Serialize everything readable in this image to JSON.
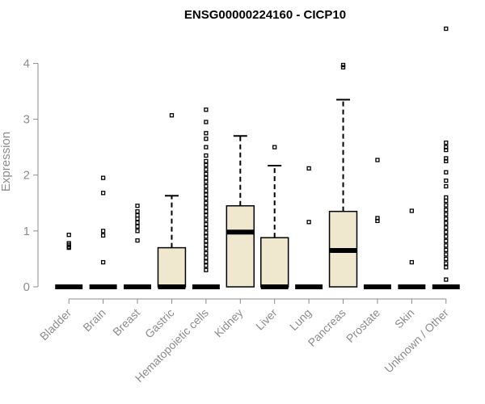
{
  "chart_data": {
    "type": "box",
    "title": "ENSG00000224160 - CICP10",
    "xlabel": "",
    "ylabel": "Expression",
    "ylim": [
      0,
      4.7
    ],
    "yticks": [
      0,
      1,
      2,
      3,
      4
    ],
    "grid": false,
    "box_color": "#efe8cf",
    "categories": [
      "Bladder",
      "Brain",
      "Breast",
      "Gastric",
      "Hematopoietic cells",
      "Kidney",
      "Liver",
      "Lung",
      "Pancreas",
      "Prostate",
      "Skin",
      "Unknown / Other"
    ],
    "boxes": [
      {
        "q1": 0,
        "median": 0,
        "q3": 0,
        "whisker_low": 0,
        "whisker_high": 0,
        "outliers": [
          0.7,
          0.72,
          0.75,
          0.78,
          0.93
        ]
      },
      {
        "q1": 0,
        "median": 0,
        "q3": 0,
        "whisker_low": 0,
        "whisker_high": 0,
        "outliers": [
          0.44,
          0.92,
          1.0,
          1.68,
          1.95
        ]
      },
      {
        "q1": 0,
        "median": 0,
        "q3": 0,
        "whisker_low": 0,
        "whisker_high": 0,
        "outliers": [
          0.83,
          1.0,
          1.08,
          1.15,
          1.22,
          1.28,
          1.35,
          1.45
        ]
      },
      {
        "q1": 0,
        "median": 0,
        "q3": 0.7,
        "whisker_low": 0,
        "whisker_high": 1.63,
        "outliers": [
          3.07
        ]
      },
      {
        "q1": 0,
        "median": 0,
        "q3": 0,
        "whisker_low": 0,
        "whisker_high": 0,
        "outliers": [
          0.3,
          0.38,
          0.45,
          0.52,
          0.6,
          0.68,
          0.75,
          0.82,
          0.9,
          0.97,
          1.05,
          1.12,
          1.2,
          1.28,
          1.35,
          1.42,
          1.5,
          1.58,
          1.65,
          1.72,
          1.8,
          1.88,
          1.95,
          2.02,
          2.1,
          2.18,
          2.25,
          2.35,
          2.5,
          2.65,
          2.75,
          2.95,
          3.17
        ]
      },
      {
        "q1": 0,
        "median": 0.98,
        "q3": 1.45,
        "whisker_low": 0,
        "whisker_high": 2.7,
        "outliers": []
      },
      {
        "q1": 0,
        "median": 0,
        "q3": 0.88,
        "whisker_low": 0,
        "whisker_high": 2.17,
        "outliers": [
          2.5
        ]
      },
      {
        "q1": 0,
        "median": 0,
        "q3": 0,
        "whisker_low": 0,
        "whisker_high": 0,
        "outliers": [
          1.16,
          2.12
        ]
      },
      {
        "q1": 0,
        "median": 0.65,
        "q3": 1.35,
        "whisker_low": 0,
        "whisker_high": 3.35,
        "outliers": [
          3.93,
          3.97
        ]
      },
      {
        "q1": 0,
        "median": 0,
        "q3": 0,
        "whisker_low": 0,
        "whisker_high": 0,
        "outliers": [
          1.18,
          1.23,
          2.27
        ]
      },
      {
        "q1": 0,
        "median": 0,
        "q3": 0,
        "whisker_low": 0,
        "whisker_high": 0,
        "outliers": [
          0.44,
          1.36
        ]
      },
      {
        "q1": 0,
        "median": 0,
        "q3": 0,
        "whisker_low": 0,
        "whisker_high": 0,
        "outliers": [
          0.13,
          0.35,
          0.42,
          0.5,
          0.58,
          0.66,
          0.74,
          0.82,
          0.9,
          0.98,
          1.06,
          1.14,
          1.22,
          1.3,
          1.38,
          1.46,
          1.54,
          1.6,
          1.8,
          1.9,
          2.05,
          2.25,
          2.3,
          2.45,
          2.5,
          2.58,
          4.62
        ]
      }
    ]
  }
}
